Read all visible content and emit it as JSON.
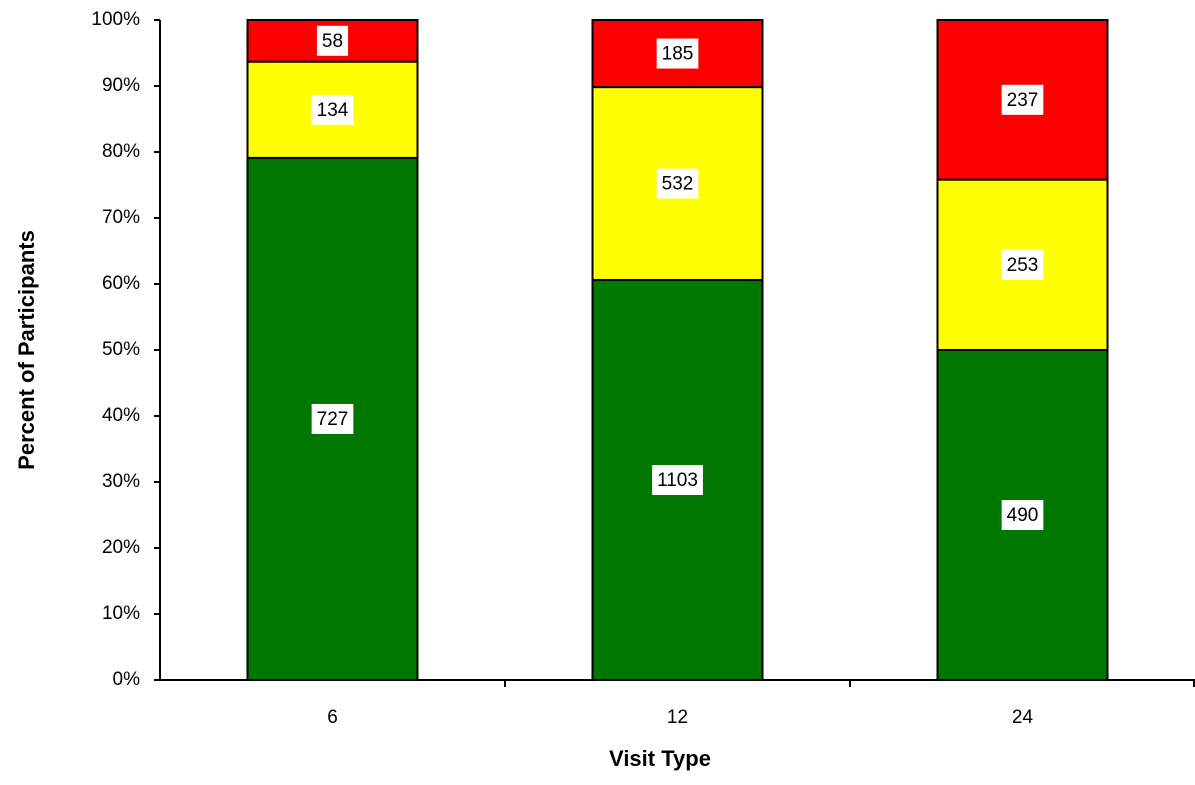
{
  "chart_data": {
    "type": "bar",
    "stacking": "percent",
    "y_label": "Percent of Participants",
    "x_label": "Visit Type",
    "categories": [
      "6",
      "12",
      "24"
    ],
    "series": [
      {
        "color": "#007700",
        "values": [
          727,
          1103,
          490
        ]
      },
      {
        "color": "#ffff00",
        "values": [
          134,
          532,
          253
        ]
      },
      {
        "color": "#ff0000",
        "values": [
          58,
          185,
          237
        ]
      }
    ],
    "ylim": [
      0,
      100
    ],
    "yticks": [
      {
        "value": 0,
        "label": "0%"
      },
      {
        "value": 10,
        "label": "10%"
      },
      {
        "value": 20,
        "label": "20%"
      },
      {
        "value": 30,
        "label": "30%"
      },
      {
        "value": 40,
        "label": "40%"
      },
      {
        "value": 50,
        "label": "50%"
      },
      {
        "value": 60,
        "label": "60%"
      },
      {
        "value": 70,
        "label": "70%"
      },
      {
        "value": 80,
        "label": "80%"
      },
      {
        "value": 90,
        "label": "90%"
      },
      {
        "value": 100,
        "label": "100%"
      }
    ]
  }
}
